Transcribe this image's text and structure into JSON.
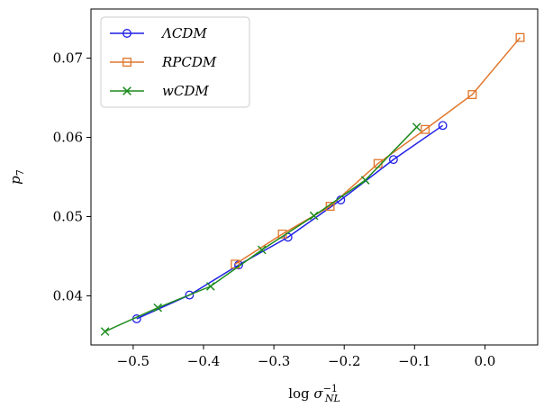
{
  "chart_data": {
    "type": "line",
    "title": "",
    "xlabel": "log σ",
    "xlabel_sub": "NL",
    "xlabel_sup": "−1",
    "ylabel": "p",
    "ylabel_sub": "7",
    "xlim": [
      -0.56,
      0.075
    ],
    "ylim": [
      0.0338,
      0.0762
    ],
    "xticks": [
      -0.5,
      -0.4,
      -0.3,
      -0.2,
      -0.1,
      0.0
    ],
    "xtick_labels": [
      "−0.5",
      "−0.4",
      "−0.3",
      "−0.2",
      "−0.1",
      "0.0"
    ],
    "yticks": [
      0.04,
      0.05,
      0.06,
      0.07
    ],
    "ytick_labels": [
      "0.04",
      "0.05",
      "0.06",
      "0.07"
    ],
    "grid": false,
    "legend_position": "top-left",
    "series": [
      {
        "name": "ΛCDM",
        "color": "#1f1fe6",
        "marker": "circle",
        "x": [
          -0.495,
          -0.42,
          -0.35,
          -0.28,
          -0.205,
          -0.13,
          -0.06
        ],
        "y": [
          0.0371,
          0.0401,
          0.0439,
          0.0474,
          0.0521,
          0.0572,
          0.0615
        ]
      },
      {
        "name": "RPCDM",
        "color": "#e0762b",
        "marker": "square",
        "x": [
          -0.355,
          -0.288,
          -0.22,
          -0.152,
          -0.085,
          -0.018,
          0.05
        ],
        "y": [
          0.044,
          0.0478,
          0.0513,
          0.0567,
          0.061,
          0.0654,
          0.0726
        ]
      },
      {
        "name": "wCDM",
        "color": "#1e8c1e",
        "marker": "x",
        "x": [
          -0.54,
          -0.465,
          -0.39,
          -0.317,
          -0.243,
          -0.17,
          -0.097
        ],
        "y": [
          0.0355,
          0.0385,
          0.0412,
          0.0458,
          0.0501,
          0.0546,
          0.0613
        ]
      }
    ]
  }
}
